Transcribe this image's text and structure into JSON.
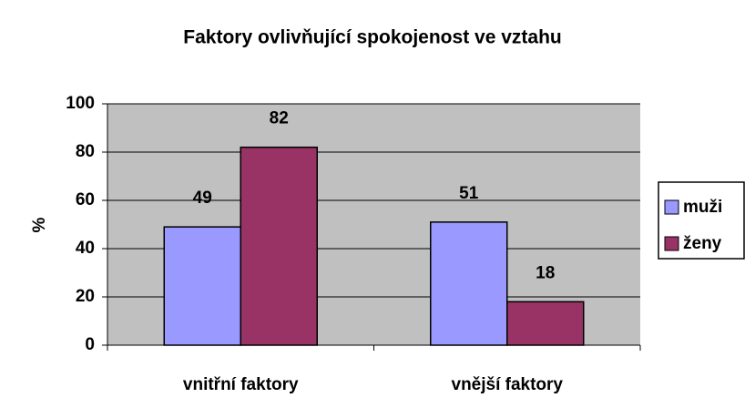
{
  "chart_data": {
    "type": "bar",
    "title": "Faktory ovlivňující spokojenost ve vztahu",
    "y_label": "%",
    "categories": [
      "vnitřní faktory",
      "vnější faktory"
    ],
    "series": [
      {
        "name": "muži",
        "color": "#9999ff",
        "values": [
          49,
          51
        ]
      },
      {
        "name": "ženy",
        "color": "#993366",
        "values": [
          82,
          18
        ]
      }
    ],
    "ylim": [
      0,
      100
    ],
    "yticks": [
      0,
      20,
      40,
      60,
      80,
      100
    ],
    "grid": true,
    "legend": "right"
  }
}
